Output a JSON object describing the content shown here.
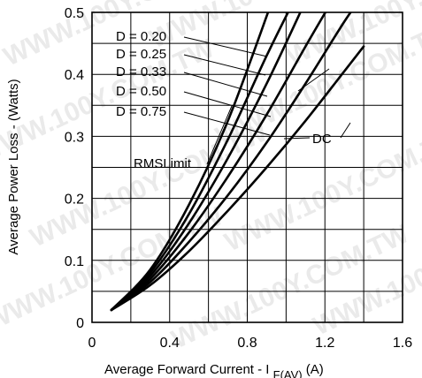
{
  "chart_data": {
    "type": "line",
    "xlabel": "Average Forward Current - I",
    "xlabel_sub": "F(AV)",
    "xlabel_unit": "(A)",
    "ylabel": "Average Power Loss - (Watts)",
    "xlim": [
      0,
      1.6
    ],
    "ylim": [
      0,
      0.5
    ],
    "x_ticks": [
      "0",
      "0.4",
      "0.8",
      "1.2",
      "1.6"
    ],
    "y_ticks": [
      "0",
      "0.1",
      "0.2",
      "0.3",
      "0.4",
      "0.5"
    ],
    "grid": true,
    "series": [
      {
        "name": "D = 0.20",
        "points": [
          [
            0.1,
            0.02
          ],
          [
            0.3,
            0.085
          ],
          [
            0.5,
            0.19
          ],
          [
            0.7,
            0.325
          ],
          [
            0.93,
            0.52
          ]
        ]
      },
      {
        "name": "D = 0.25",
        "points": [
          [
            0.1,
            0.02
          ],
          [
            0.3,
            0.08
          ],
          [
            0.5,
            0.175
          ],
          [
            0.7,
            0.295
          ],
          [
            0.9,
            0.43
          ],
          [
            1.05,
            0.525
          ]
        ]
      },
      {
        "name": "D = 0.33",
        "points": [
          [
            0.1,
            0.02
          ],
          [
            0.3,
            0.075
          ],
          [
            0.5,
            0.16
          ],
          [
            0.7,
            0.265
          ],
          [
            0.9,
            0.385
          ],
          [
            1.1,
            0.518
          ]
        ]
      },
      {
        "name": "D = 0.50",
        "points": [
          [
            0.1,
            0.02
          ],
          [
            0.3,
            0.07
          ],
          [
            0.5,
            0.145
          ],
          [
            0.7,
            0.235
          ],
          [
            0.9,
            0.335
          ],
          [
            1.1,
            0.445
          ],
          [
            1.24,
            0.52
          ]
        ]
      },
      {
        "name": "D = 0.75",
        "points": [
          [
            0.1,
            0.02
          ],
          [
            0.3,
            0.065
          ],
          [
            0.5,
            0.13
          ],
          [
            0.7,
            0.205
          ],
          [
            0.9,
            0.29
          ],
          [
            1.1,
            0.385
          ],
          [
            1.3,
            0.485
          ],
          [
            1.38,
            0.52
          ]
        ]
      },
      {
        "name": "DC",
        "points": [
          [
            0.1,
            0.02
          ],
          [
            0.3,
            0.06
          ],
          [
            0.5,
            0.115
          ],
          [
            0.7,
            0.18
          ],
          [
            0.9,
            0.25
          ],
          [
            1.1,
            0.325
          ],
          [
            1.3,
            0.405
          ],
          [
            1.4,
            0.445
          ]
        ]
      }
    ],
    "labels": [
      {
        "text": "D = 0.20",
        "series": 0
      },
      {
        "text": "D = 0.25",
        "series": 1
      },
      {
        "text": "D = 0.33",
        "series": 2
      },
      {
        "text": "D = 0.50",
        "series": 3
      },
      {
        "text": "D = 0.75",
        "series": 4
      },
      {
        "text": "DC",
        "series": 5
      },
      {
        "text": "RMSLimit"
      }
    ],
    "watermark": "WWW.100Y.COM.TW"
  }
}
